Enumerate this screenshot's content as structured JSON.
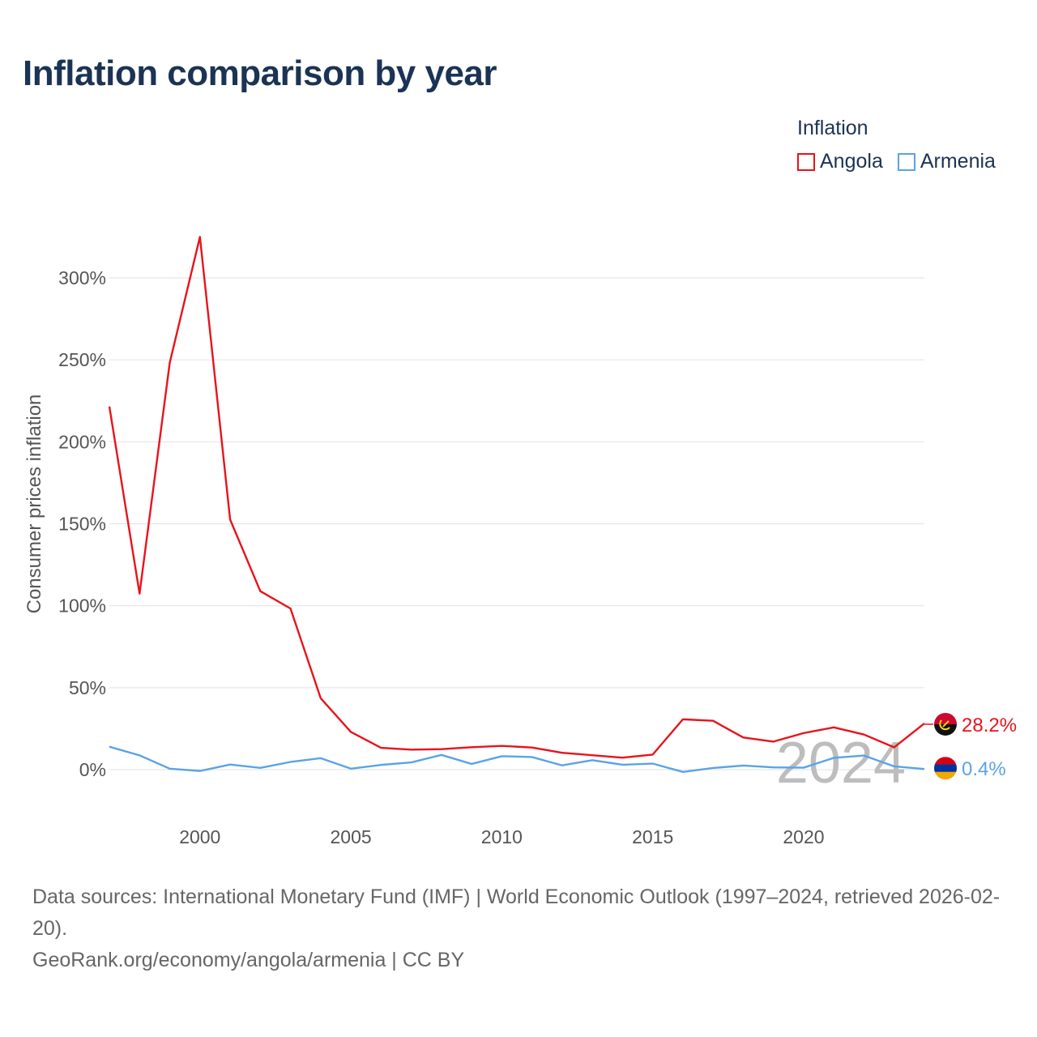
{
  "title": "Inflation comparison by year",
  "legend": {
    "title": "Inflation",
    "items": [
      {
        "label": "Angola",
        "color": "#e8131b"
      },
      {
        "label": "Armenia",
        "color": "#5ba3e6"
      }
    ]
  },
  "watermark_year": "2024",
  "footer": {
    "sources": "Data sources: International Monetary Fund (IMF) | World Economic Outlook (1997–2024, retrieved 2026-02-20).",
    "credit": "GeoRank.org/economy/angola/armenia | CC BY"
  },
  "chart_data": {
    "type": "line",
    "title": "Inflation comparison by year",
    "xlabel": "",
    "ylabel": "Consumer prices inflation",
    "xlim": [
      1997,
      2024
    ],
    "ylim": [
      -25,
      325
    ],
    "x_ticks": [
      2000,
      2005,
      2010,
      2015,
      2020
    ],
    "y_ticks": [
      0,
      50,
      100,
      150,
      200,
      250,
      300
    ],
    "y_tick_labels": [
      "0%",
      "50%",
      "100%",
      "150%",
      "200%",
      "250%",
      "300%"
    ],
    "grid": true,
    "legend_position": "top-right",
    "x": [
      1997,
      1998,
      1999,
      2000,
      2001,
      2002,
      2003,
      2004,
      2005,
      2006,
      2007,
      2008,
      2009,
      2010,
      2011,
      2012,
      2013,
      2014,
      2015,
      2016,
      2017,
      2018,
      2019,
      2020,
      2021,
      2022,
      2023,
      2024
    ],
    "series": [
      {
        "name": "Angola",
        "color": "#e8131b",
        "end_label": "28.2%",
        "values": [
          221.5,
          107.4,
          248.2,
          325.0,
          152.6,
          108.9,
          98.3,
          43.6,
          23.0,
          13.3,
          12.2,
          12.5,
          13.7,
          14.5,
          13.5,
          10.3,
          8.8,
          7.3,
          9.2,
          30.7,
          29.8,
          19.6,
          17.1,
          22.3,
          25.8,
          21.4,
          13.6,
          28.2
        ]
      },
      {
        "name": "Armenia",
        "color": "#5ba3e6",
        "end_label": "0.4%",
        "values": [
          14.0,
          8.7,
          0.6,
          -0.8,
          3.1,
          1.1,
          4.7,
          7.0,
          0.6,
          2.9,
          4.4,
          9.0,
          3.5,
          8.2,
          7.7,
          2.6,
          5.8,
          3.0,
          3.7,
          -1.4,
          1.0,
          2.5,
          1.4,
          1.2,
          7.2,
          8.6,
          2.0,
          0.4
        ]
      }
    ]
  }
}
